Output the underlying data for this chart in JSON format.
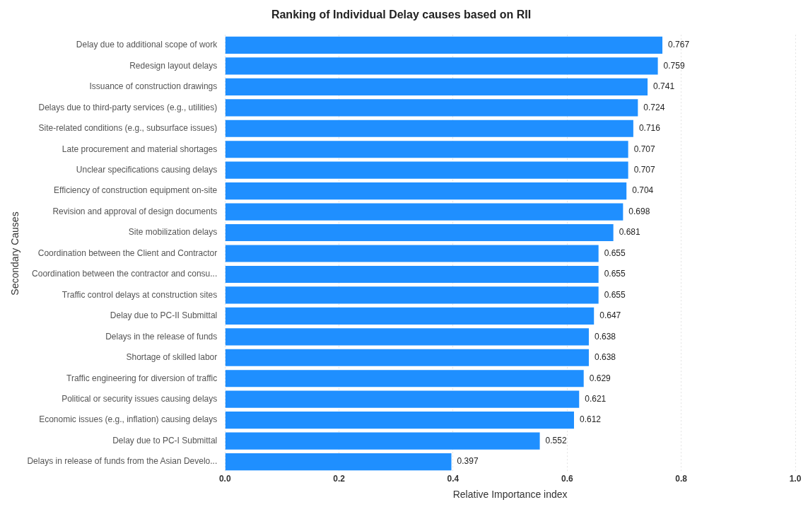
{
  "chart_data": {
    "type": "bar",
    "orientation": "horizontal",
    "title": "Ranking of Individual Delay causes based on RII",
    "xlabel": "Relative Importance index",
    "ylabel": "Secondary Causes",
    "categories": [
      "Delay due to additional scope of work",
      "Redesign layout delays",
      "Issuance of construction drawings",
      "Delays due to third-party services (e.g., utilities)",
      "Site-related conditions (e.g., subsurface issues)",
      "Late procurement and material shortages",
      "Unclear specifications causing delays",
      "Efficiency of construction equipment on-site",
      "Revision and approval of design documents",
      "Site mobilization delays",
      "Coordination between the Client and Contractor",
      "Coordination between the contractor and consu...",
      "Traffic control delays at construction sites",
      "Delay due to PC-II Submittal",
      "Delays in the release of funds",
      "Shortage of skilled labor",
      "Traffic engineering for diversion of traffic",
      "Political or security issues causing delays",
      "Economic issues (e.g., inflation) causing delays",
      "Delay due to PC-I Submittal",
      "Delays in release of funds from the Asian Develo..."
    ],
    "values": [
      0.767,
      0.759,
      0.741,
      0.724,
      0.716,
      0.707,
      0.707,
      0.704,
      0.698,
      0.681,
      0.655,
      0.655,
      0.655,
      0.647,
      0.638,
      0.638,
      0.629,
      0.621,
      0.612,
      0.552,
      0.397
    ],
    "color": "#1f8fff",
    "xlim": [
      0,
      1.0
    ],
    "xticks": [
      {
        "value": 0,
        "label": "0.0"
      },
      0.2,
      0.4,
      0.6,
      0.8,
      {
        "value": 1,
        "label": "1.0"
      }
    ],
    "grid": "x",
    "data_labels": true
  }
}
